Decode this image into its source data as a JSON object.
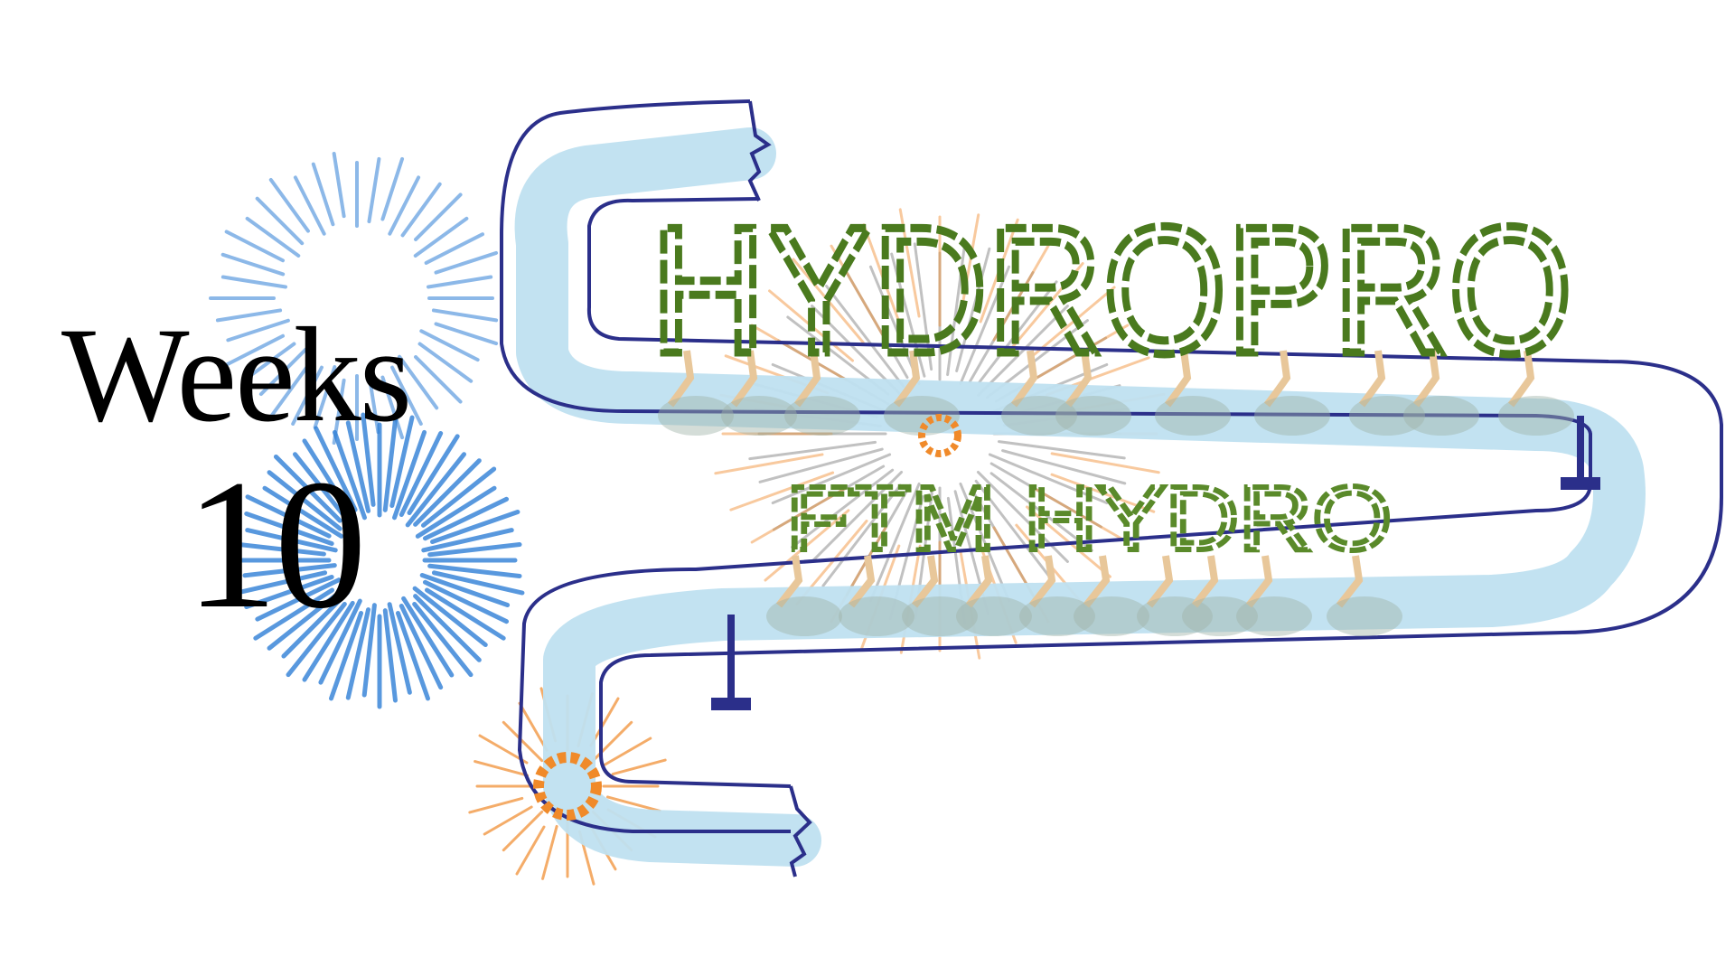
{
  "heading": {
    "weeks_label": "Weeks",
    "weeks_number": "10"
  },
  "logo": {
    "title": "HYDROPRO",
    "subtitle": "FTM HYDRO"
  },
  "colors": {
    "pipe_outline": "#2b2f8a",
    "water": "#bfe0f0",
    "vine": "#4a7a1e",
    "firework_blue": "#2f7fd6",
    "firework_orange": "#f08a2a",
    "root": "#e8c79a"
  },
  "icons": [
    "firework-icon",
    "plant-root-icon",
    "valve-icon"
  ]
}
